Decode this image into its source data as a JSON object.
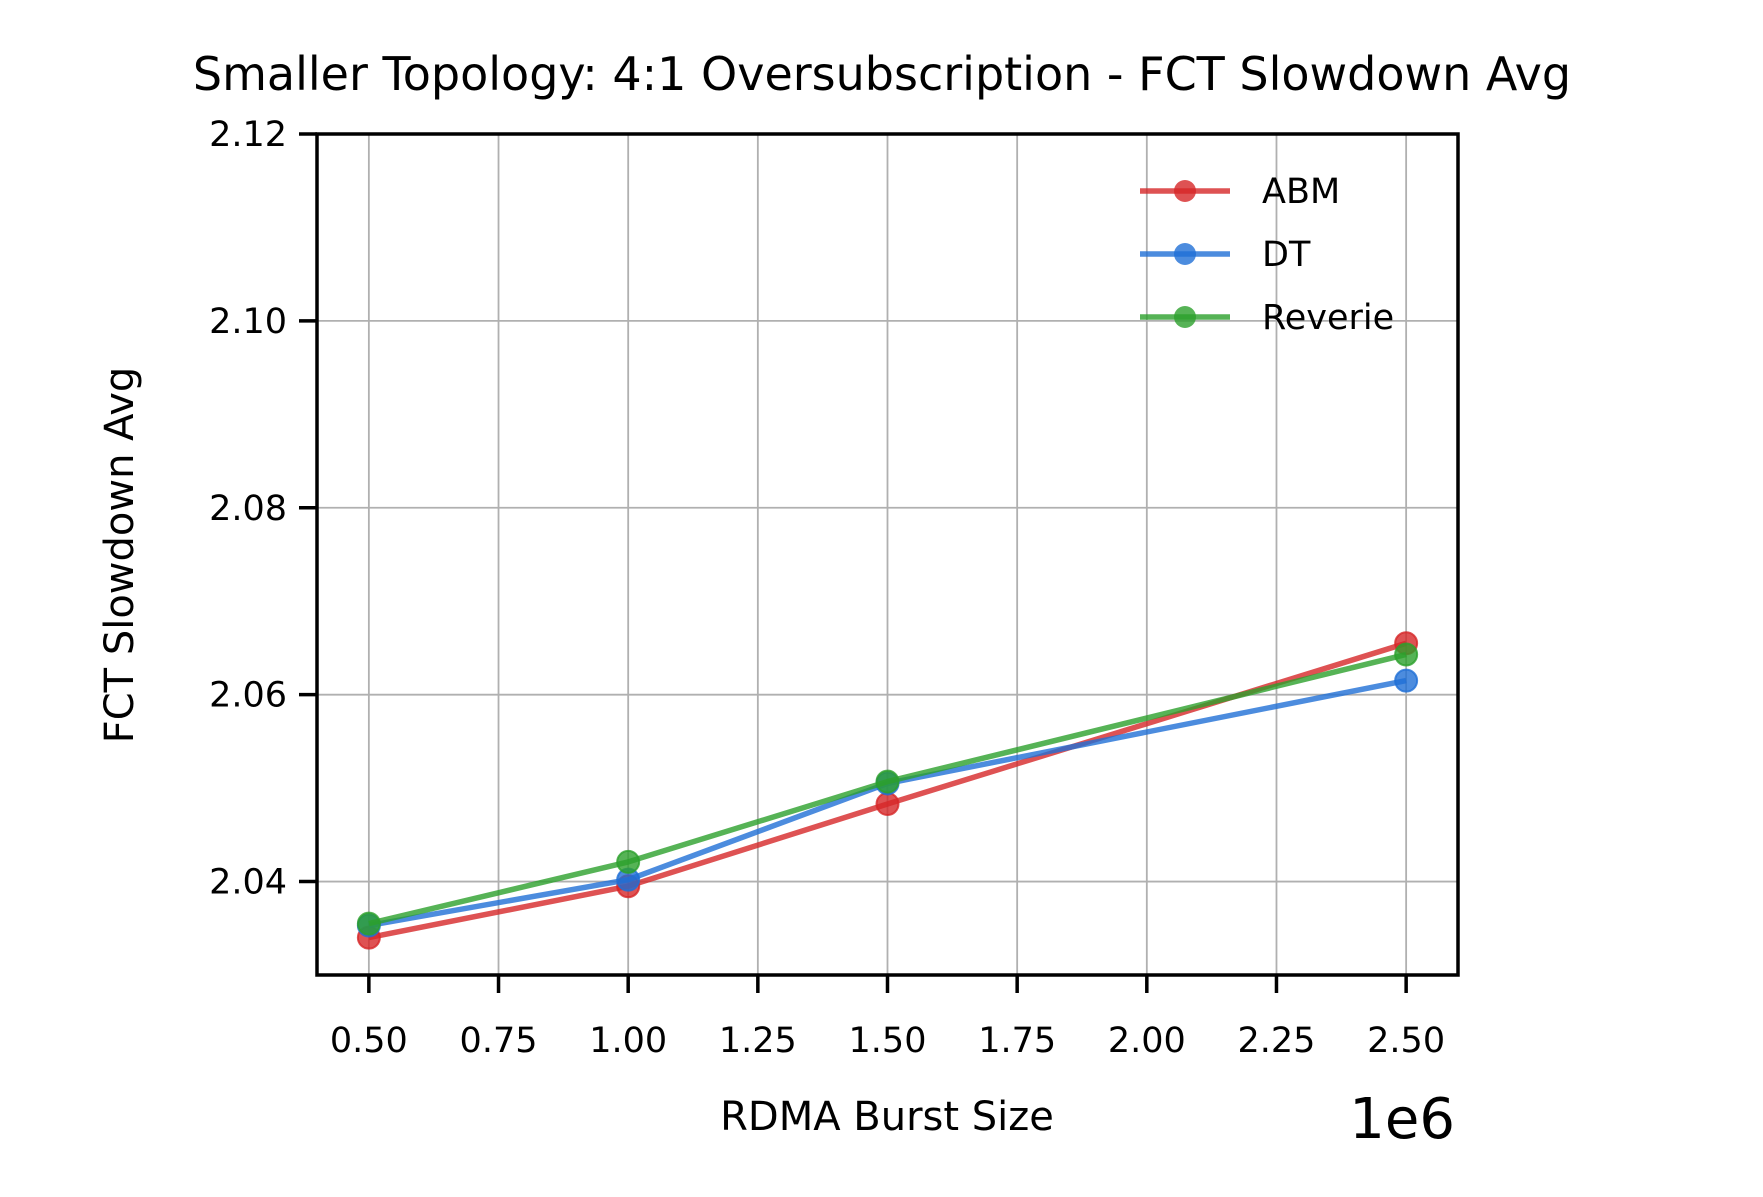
{
  "chart_data": {
    "type": "line",
    "title": "Smaller Topology: 4:1 Oversubscription - FCT Slowdown Avg",
    "xlabel": "RDMA Burst Size",
    "ylabel": "FCT Slowdown Avg",
    "x_offset_label": "1e6",
    "x_scale_factor": 1000000,
    "x": [
      500000,
      1000000,
      1500000,
      2500000
    ],
    "xlim": [
      400000,
      2600000
    ],
    "ylim": [
      2.03,
      2.12
    ],
    "x_ticks": [
      500000,
      750000,
      1000000,
      1250000,
      1500000,
      1750000,
      2000000,
      2250000,
      2500000
    ],
    "x_tick_labels": [
      "0.50",
      "0.75",
      "1.00",
      "1.25",
      "1.50",
      "1.75",
      "2.00",
      "2.25",
      "2.50"
    ],
    "y_ticks": [
      2.04,
      2.06,
      2.08,
      2.1,
      2.12
    ],
    "y_tick_labels": [
      "2.04",
      "2.06",
      "2.08",
      "2.10",
      "2.12"
    ],
    "grid": true,
    "legend_position": "top-right",
    "series": [
      {
        "name": "ABM",
        "color": "#d62728",
        "values": [
          2.034,
          2.0395,
          2.0483,
          2.0655
        ]
      },
      {
        "name": "DT",
        "color": "#1f6fd6",
        "values": [
          2.0353,
          2.0402,
          2.0505,
          2.0615
        ]
      },
      {
        "name": "Reverie",
        "color": "#2ca02c",
        "values": [
          2.0355,
          2.0421,
          2.0507,
          2.0643
        ]
      }
    ]
  }
}
